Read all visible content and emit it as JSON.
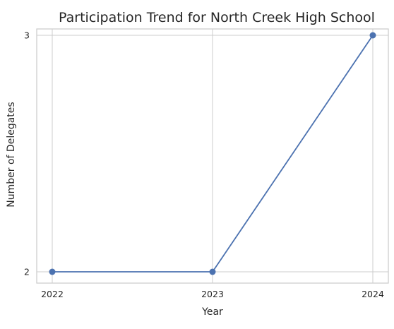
{
  "chart_data": {
    "type": "line",
    "title": "Participation Trend for North Creek High School",
    "xlabel": "Year",
    "ylabel": "Number of Delegates",
    "categories": [
      "2022",
      "2023",
      "2024"
    ],
    "series": [
      {
        "values": [
          2,
          2,
          3
        ]
      }
    ],
    "y_ticks": [
      2,
      3
    ],
    "ylim": [
      2,
      3
    ],
    "grid": true,
    "marker": "circle",
    "colors": {
      "line": "#4c72b0",
      "grid": "#cccccc",
      "frame": "#cccccc",
      "text": "#262626",
      "background": "#ffffff"
    }
  }
}
